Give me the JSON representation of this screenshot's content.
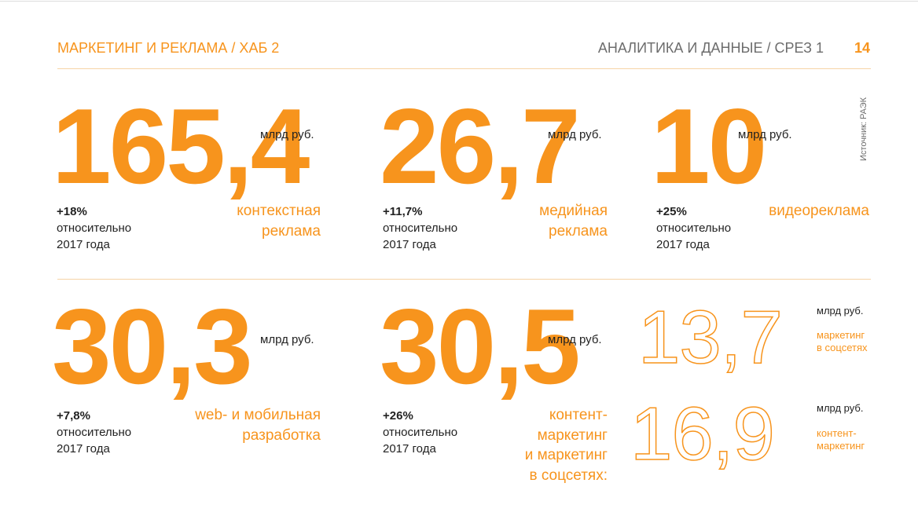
{
  "header": {
    "left": "МАРКЕТИНГ И РЕКЛАМА / ХАБ 2",
    "right": "АНАЛИТИКА И ДАННЫЕ / СРЕЗ 1",
    "page": "14"
  },
  "source": "Источник: РАЭК",
  "blocks": [
    {
      "number": "165,4",
      "unit": "млрд руб.",
      "growth": "+18%",
      "growth_text": [
        "относительно",
        "2017 года"
      ],
      "label": [
        "контекстная",
        "реклама"
      ]
    },
    {
      "number": "26,7",
      "unit": "млрд руб.",
      "growth": "+11,7%",
      "growth_text": [
        "относительно",
        "2017 года"
      ],
      "label": [
        "медийная",
        "реклама"
      ]
    },
    {
      "number": "10",
      "unit": "млрд руб.",
      "growth": "+25%",
      "growth_text": [
        "относительно",
        "2017 года"
      ],
      "label": [
        "видеореклама"
      ]
    },
    {
      "number": "30,3",
      "unit": "млрд руб.",
      "growth": "+7,8%",
      "growth_text": [
        "относительно",
        "2017 года"
      ],
      "label": [
        "web- и мобильная",
        "разработка"
      ]
    },
    {
      "number": "30,5",
      "unit": "млрд руб.",
      "growth": "+26%",
      "growth_text": [
        "относительно",
        "2017 года"
      ],
      "label": [
        "контент-",
        "маркетинг",
        "и маркетинг",
        "в соцсетях:"
      ]
    }
  ],
  "sub_blocks": [
    {
      "number": "13,7",
      "unit": "млрд руб.",
      "label": [
        "маркетинг",
        "в соцсетях"
      ]
    },
    {
      "number": "16,9",
      "unit": "млрд руб.",
      "label": [
        "контент-",
        "маркетинг"
      ]
    }
  ]
}
